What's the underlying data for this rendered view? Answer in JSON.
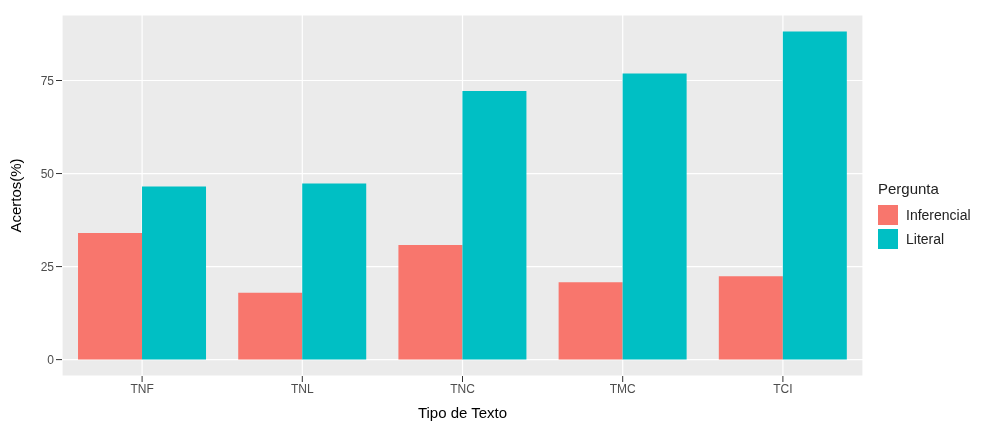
{
  "chart_data": {
    "type": "bar",
    "xlabel": "Tipo de Texto",
    "ylabel": "Acertos(%)",
    "legend_title": "Pergunta",
    "categories": [
      "TNF",
      "TNL",
      "TNC",
      "TMC",
      "TCI"
    ],
    "series": [
      {
        "name": "Inferencial",
        "color": "#f8766d",
        "values": [
          34,
          18,
          30.8,
          20.8,
          22.4
        ]
      },
      {
        "name": "Literal",
        "color": "#00bfc4",
        "values": [
          46.5,
          47.3,
          72.2,
          76.9,
          88.2
        ]
      }
    ],
    "ylim": [
      -4.4,
      92.6
    ],
    "yticks": [
      0,
      25,
      50,
      75
    ],
    "grid": true,
    "legend": "right"
  }
}
